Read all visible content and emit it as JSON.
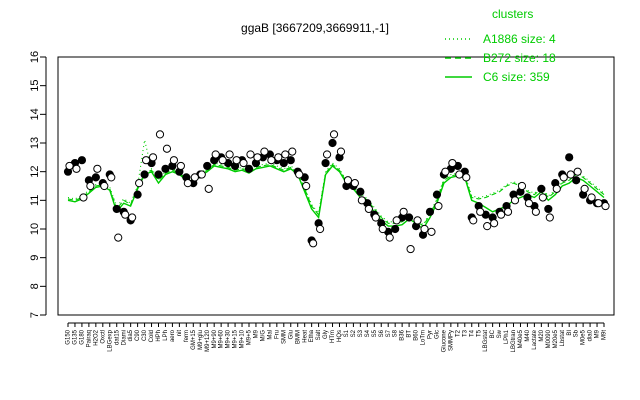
{
  "chart_data": {
    "type": "line",
    "title": "ggaB [3667209,3669911,-1]",
    "xlabel": "",
    "ylabel": "",
    "ylim": [
      7,
      16
    ],
    "yticks": [
      7,
      8,
      9,
      10,
      11,
      12,
      13,
      14,
      15,
      16
    ],
    "legend": {
      "title": "clusters",
      "placement": "top-right",
      "entries": [
        {
          "label": "A1886 size: 4",
          "style": "dotted"
        },
        {
          "label": "B272 size: 18",
          "style": "dashed"
        },
        {
          "label": "C6 size: 359",
          "style": "solid"
        }
      ]
    },
    "colors": {
      "line": "#00cc00",
      "points": "#000000"
    },
    "x_tick_labels": [
      "G150",
      "G135",
      "G180",
      "Pairaq",
      "H2O2",
      "Oxctl",
      "LBGexp",
      "dat15",
      "Diami",
      "dia5",
      "C90",
      "C30",
      "Cold",
      "HPh",
      "LPh",
      "aero",
      "nit",
      "ferm",
      "GM+15",
      "M9+glu",
      "M9+120",
      "M9+90",
      "M9+60",
      "M9+30",
      "M9+15",
      "M9+10",
      "M9+5",
      "M9",
      "M/G",
      "Mal",
      "Fru",
      "SMM",
      "Glu",
      "BMM",
      "Heat",
      "Etha",
      "Salt",
      "Gly",
      "HTm",
      "HQs",
      "S1",
      "S2",
      "S3",
      "S4",
      "S5",
      "S6",
      "S7",
      "S8",
      "B36",
      "BT",
      "B60",
      "LoTm",
      "Pyr",
      "Glc",
      "Glucone",
      "SMMPy",
      "T2",
      "T3",
      "T4",
      "T5",
      "LBGstat",
      "BC",
      "Sw",
      "LPh1",
      "LBGtran",
      "M40e5",
      "M40",
      "Lactate",
      "M20",
      "M0090",
      "M20e5",
      "Lbstat",
      "BI",
      "Sb",
      "M0e5",
      "dia0",
      "M9",
      "M9t"
    ],
    "series": [
      {
        "label": "C6 size: 359",
        "y": [
          11.0,
          10.95,
          11.05,
          11.25,
          11.45,
          11.5,
          11.35,
          10.6,
          10.9,
          10.8,
          11.4,
          11.9,
          12.0,
          11.6,
          11.9,
          12.0,
          11.9,
          11.7,
          11.6,
          11.85,
          12.0,
          12.2,
          12.15,
          12.1,
          12.0,
          12.05,
          11.95,
          12.1,
          12.15,
          12.2,
          12.1,
          12.0,
          12.1,
          11.9,
          11.3,
          10.7,
          10.4,
          11.9,
          12.2,
          12.0,
          11.6,
          11.4,
          11.1,
          10.9,
          10.6,
          10.3,
          10.1,
          10.1,
          10.15,
          10.35,
          10.2,
          10.0,
          10.4,
          10.9,
          11.6,
          11.8,
          11.85,
          11.8,
          11.0,
          10.9,
          10.75,
          10.6,
          10.7,
          10.8,
          11.0,
          11.1,
          11.2,
          11.1,
          11.3,
          11.0,
          11.2,
          11.5,
          11.6,
          11.8,
          11.7,
          11.5,
          11.3,
          11.1
        ]
      },
      {
        "label": "B272 size: 18",
        "y": [
          11.05,
          11.0,
          11.1,
          11.3,
          11.5,
          11.55,
          11.4,
          10.7,
          11.0,
          10.85,
          11.45,
          11.95,
          12.05,
          11.7,
          11.95,
          12.05,
          11.95,
          11.75,
          11.65,
          11.9,
          12.05,
          12.25,
          12.2,
          12.15,
          12.05,
          12.1,
          12.0,
          12.15,
          12.2,
          12.25,
          12.15,
          12.05,
          12.15,
          11.95,
          11.4,
          10.8,
          10.5,
          11.95,
          12.25,
          12.05,
          11.65,
          11.45,
          11.2,
          11.0,
          10.7,
          10.4,
          10.2,
          10.2,
          10.25,
          10.45,
          10.3,
          10.1,
          10.5,
          11.0,
          11.7,
          11.85,
          11.9,
          11.85,
          11.1,
          11.05,
          11.1,
          11.2,
          11.3,
          11.5,
          11.6,
          11.5,
          11.3,
          11.2,
          11.4,
          11.1,
          11.3,
          11.6,
          11.7,
          11.9,
          11.8,
          11.6,
          11.4,
          11.2
        ]
      },
      {
        "label": "A1886 size: 4",
        "y": [
          11.1,
          11.05,
          11.15,
          11.35,
          11.55,
          11.6,
          11.45,
          10.8,
          11.05,
          10.9,
          11.5,
          13.1,
          12.1,
          11.75,
          12.0,
          12.1,
          12.0,
          11.8,
          11.7,
          11.95,
          12.1,
          12.3,
          12.25,
          12.2,
          12.1,
          12.15,
          12.05,
          12.2,
          12.25,
          12.3,
          12.2,
          12.1,
          12.2,
          12.0,
          11.45,
          10.85,
          10.55,
          12.0,
          12.3,
          12.1,
          11.7,
          11.5,
          11.25,
          11.05,
          10.75,
          10.45,
          10.25,
          10.25,
          10.3,
          10.5,
          10.35,
          10.15,
          10.55,
          11.05,
          11.75,
          11.9,
          11.95,
          11.9,
          11.15,
          11.1,
          11.15,
          11.25,
          11.35,
          11.55,
          11.65,
          11.55,
          11.35,
          11.25,
          11.45,
          11.15,
          11.35,
          11.65,
          11.75,
          11.95,
          11.85,
          11.65,
          11.45,
          11.25
        ]
      },
      {
        "label": "points_filled",
        "y": [
          12.0,
          12.3,
          12.4,
          11.7,
          11.8,
          11.6,
          11.9,
          10.7,
          10.6,
          10.3,
          11.2,
          11.9,
          12.3,
          11.9,
          12.1,
          12.2,
          12.0,
          11.8,
          11.6,
          11.9,
          12.2,
          12.4,
          12.5,
          12.3,
          12.2,
          12.4,
          12.1,
          12.3,
          12.5,
          12.6,
          12.4,
          12.3,
          12.4,
          12.0,
          11.8,
          9.6,
          10.2,
          12.3,
          13.0,
          12.5,
          11.5,
          11.5,
          11.3,
          10.9,
          10.5,
          10.2,
          9.9,
          10.0,
          10.4,
          10.4,
          10.1,
          9.8,
          10.6,
          11.2,
          11.9,
          12.1,
          12.2,
          12.0,
          10.4,
          10.8,
          10.5,
          10.4,
          10.6,
          10.8,
          11.2,
          11.3,
          11.1,
          10.8,
          11.4,
          10.7,
          11.6,
          11.9,
          12.5,
          11.7,
          11.2,
          11.0,
          10.9,
          10.9
        ]
      },
      {
        "label": "points_open",
        "y": [
          12.2,
          12.1,
          11.1,
          11.5,
          12.1,
          11.5,
          11.8,
          9.7,
          10.5,
          10.4,
          11.6,
          12.4,
          12.5,
          13.3,
          12.8,
          12.4,
          12.2,
          11.6,
          11.8,
          11.9,
          11.4,
          12.6,
          12.4,
          12.6,
          12.4,
          12.3,
          12.6,
          12.5,
          12.7,
          12.4,
          12.5,
          12.6,
          12.7,
          11.9,
          11.5,
          9.5,
          10.0,
          12.6,
          13.3,
          12.7,
          11.7,
          11.6,
          11.0,
          10.7,
          10.4,
          10.0,
          9.7,
          10.3,
          10.6,
          9.3,
          10.3,
          10.0,
          9.9,
          10.8,
          12.0,
          12.3,
          11.9,
          11.8,
          10.3,
          10.6,
          10.1,
          10.2,
          10.5,
          10.6,
          11.0,
          11.5,
          10.9,
          10.6,
          11.1,
          10.4,
          11.4,
          11.8,
          11.9,
          12.0,
          11.4,
          11.1,
          10.9,
          10.8
        ]
      }
    ]
  }
}
